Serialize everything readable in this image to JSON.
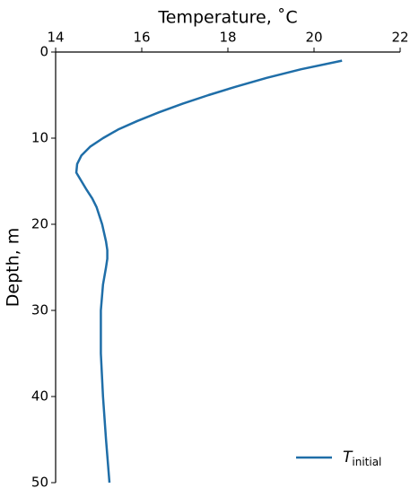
{
  "chart_data": {
    "type": "line",
    "xlabel": "Temperature, ˚C",
    "ylabel": "Depth, m",
    "y": [
      1,
      2,
      3,
      4,
      5,
      6,
      7,
      8,
      9,
      10,
      11,
      12,
      13,
      14,
      15,
      16,
      17,
      18,
      20,
      22,
      23,
      24,
      25,
      27,
      30,
      35,
      40,
      45,
      50
    ],
    "series": [
      {
        "name": "T",
        "name_subscript": "initial",
        "color": "#1f6ea8",
        "values": [
          20.65,
          19.7,
          18.9,
          18.2,
          17.55,
          16.95,
          16.4,
          15.9,
          15.45,
          15.1,
          14.8,
          14.6,
          14.5,
          14.48,
          14.6,
          14.72,
          14.85,
          14.95,
          15.08,
          15.17,
          15.2,
          15.2,
          15.17,
          15.1,
          15.05,
          15.05,
          15.1,
          15.17,
          15.25
        ]
      }
    ],
    "xlim": [
      14,
      22
    ],
    "xticks": [
      14,
      16,
      18,
      20,
      22
    ],
    "ylim": [
      0,
      50
    ],
    "yticks": [
      0,
      10,
      20,
      30,
      40,
      50
    ],
    "y_inverted": true,
    "x_axis_position": "top",
    "grid": false,
    "legend": "lower right"
  }
}
